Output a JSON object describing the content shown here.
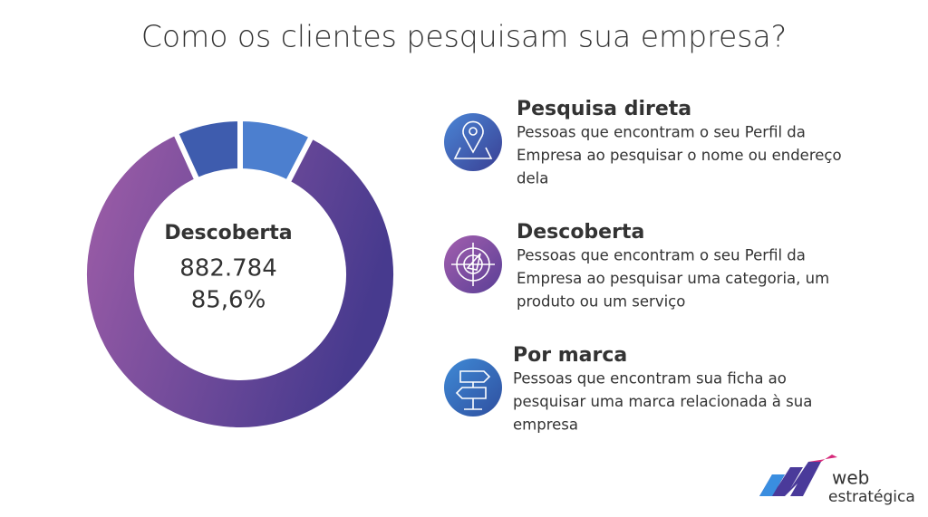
{
  "chart_data": {
    "type": "donut",
    "title": "Como os clientes pesquisam sua empresa?",
    "categories": [
      "Pesquisa direta",
      "Descoberta",
      "Por marca"
    ],
    "values": [
      7.6,
      85.6,
      6.8
    ],
    "colors": [
      "#4c7fcf",
      "#6f4aa0",
      "#3e5cae"
    ],
    "descriptions": [
      [
        "Pessoas que encontram o seu Perfil da",
        "Empresa ao pesquisar o nome ou endereço",
        "dela"
      ],
      [
        "Pessoas que encontram o seu Perfil da",
        "Empresa ao pesquisar uma categoria, um",
        "produto ou um serviço"
      ],
      [
        "Pessoas que encontram sua ficha ao",
        "pesquisar uma marca relacionada à sua",
        "empresa"
      ]
    ],
    "center": {
      "name": "Descoberta",
      "count": "882.784",
      "share": "85,6%"
    }
  },
  "brand": [
    "web",
    "estratégica"
  ]
}
